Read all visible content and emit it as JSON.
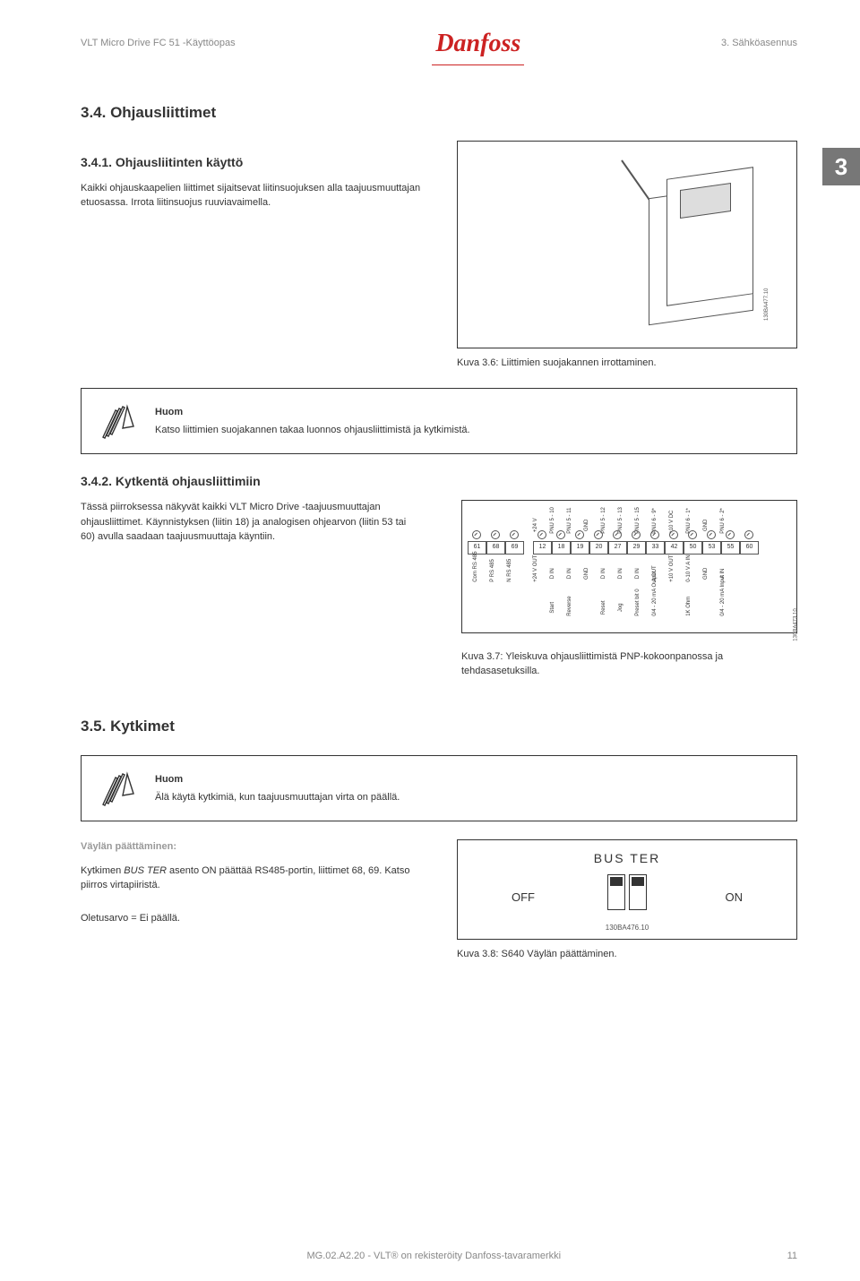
{
  "header": {
    "left": "VLT Micro Drive FC 51 -Käyttöopas",
    "right": "3. Sähköasennus",
    "logo": "Danfoss"
  },
  "side_number": "3",
  "s34": {
    "title": "3.4. Ohjausliittimet",
    "s341": {
      "title": "3.4.1. Ohjausliitinten käyttö",
      "p1": "Kaikki ohjauskaapelien liittimet sijaitsevat liitinsuojuksen alla taajuusmuuttajan etuosassa. Irrota liitinsuojus ruuviavaimella.",
      "img_id": "130BA477.10",
      "caption": "Kuva 3.6: Liittimien suojakannen irrottaminen."
    },
    "note1": {
      "head": "Huom",
      "body": "Katso liittimien suojakannen takaa luonnos ohjausliittimistä ja kytkimistä."
    },
    "s342": {
      "title": "3.4.2. Kytkentä ohjausliittimiin",
      "p1": "Tässä piirroksessa näkyvät kaikki VLT Micro Drive -taajuusmuuttajan ohjausliittimet. Käynnistyksen (liitin 18) ja analogisen ohjearvon (liitin 53 tai 60) avulla saadaan taajuusmuuttaja käyntiin.",
      "img_id": "130BA473.10",
      "caption": "Kuva 3.7: Yleiskuva ohjausliittimistä PNP-kokoonpanossa ja tehdasasetuksilla.",
      "terminals": {
        "top": [
          "",
          "",
          "",
          "+24 V",
          "PNU 5 - 10",
          "PNU 5 - 11",
          "GND",
          "PNU 5 - 12",
          "PNU 5 - 13",
          "PNU 5 - 15",
          "PNU 6 - 9*",
          "+10 V DC",
          "PNU 6 - 1*",
          "GND",
          "PNU 6 - 2*"
        ],
        "num": [
          "61",
          "68",
          "69",
          "12",
          "18",
          "19",
          "20",
          "27",
          "29",
          "33",
          "42",
          "50",
          "53",
          "55",
          "60"
        ],
        "sig": [
          "Com RS 485",
          "P RS 485",
          "N RS 485",
          "+24 V OUT",
          "D IN",
          "D IN",
          "GND",
          "D IN",
          "D IN",
          "D IN",
          "A OUT",
          "+10 V OUT",
          "0-10 V A IN",
          "GND",
          "A IN"
        ],
        "fn": [
          "",
          "",
          "",
          "",
          "Start",
          "Reverse",
          "",
          "Reset",
          "Jog",
          "Preset bit 0",
          "0/4 - 20 mA Output",
          "",
          "1K Ohm",
          "",
          "0/4 - 20 mA Input"
        ]
      }
    }
  },
  "s35": {
    "title": "3.5. Kytkimet",
    "note": {
      "head": "Huom",
      "body": "Älä käytä kytkimiä, kun taajuusmuuttajan virta on päällä."
    },
    "bus": {
      "head": "Väylän päättäminen:",
      "p1_a": "Kytkimen ",
      "p1_em": "BUS TER",
      "p1_b": " asento ON päättää RS485-portin, liittimet 68, 69. Katso piirros virtapiiristä.",
      "default": "Oletusarvo = Ei päällä.",
      "diag": {
        "title": "BUS TER",
        "off": "OFF",
        "on": "ON",
        "id": "130BA476.10"
      },
      "caption": "Kuva 3.8: S640 Väylän päättäminen."
    }
  },
  "footer": {
    "center": "MG.02.A2.20 - VLT® on rekisteröity Danfoss-tavaramerkki",
    "page": "11"
  },
  "colors": {
    "accent": "#cc2222",
    "text": "#333333",
    "muted": "#888888"
  }
}
